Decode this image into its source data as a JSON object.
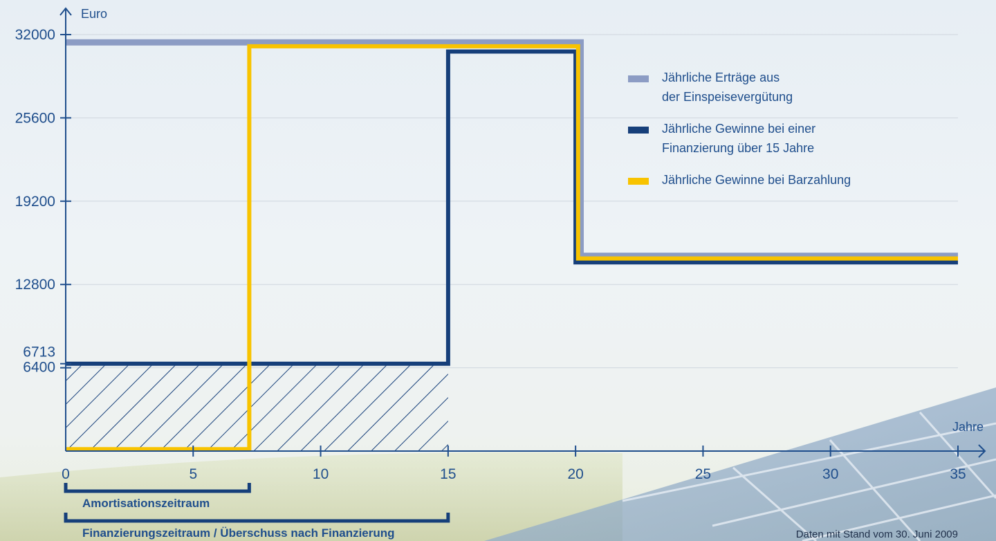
{
  "chart_data": {
    "type": "line",
    "step": true,
    "ylabel": "Euro",
    "xlabel": "Jahre",
    "x_ticks": [
      0,
      5,
      10,
      15,
      20,
      25,
      30,
      35
    ],
    "y_ticks": [
      6400,
      6713,
      12800,
      19200,
      25600,
      32000
    ],
    "xlim": [
      0,
      35
    ],
    "ylim": [
      0,
      32000
    ],
    "grid": true,
    "legend_position": "right",
    "series": [
      {
        "name": "Jährliche Erträge aus der Einspeisevergütung",
        "legend_lines": [
          "Jährliche Erträge aus",
          "der Einspeisevergütung"
        ],
        "color": "#8c9cc4",
        "points": [
          [
            0,
            31400
          ],
          [
            20.2,
            31400
          ],
          [
            20.2,
            15000
          ],
          [
            35,
            15000
          ]
        ]
      },
      {
        "name": "Jährliche Gewinne bei einer Finanzierung über 15 Jahre",
        "legend_lines": [
          "Jährliche Gewinne bei einer",
          "Finanzierung über 15 Jahre"
        ],
        "color": "#163f7a",
        "points": [
          [
            0,
            6713
          ],
          [
            15,
            6713
          ],
          [
            15,
            30700
          ],
          [
            20,
            30700
          ],
          [
            20,
            14500
          ],
          [
            35,
            14500
          ]
        ]
      },
      {
        "name": "Jährliche Gewinne bei Barzahlung",
        "legend_lines": [
          "Jährliche Gewinne bei Barzahlung"
        ],
        "color": "#f8c300",
        "points": [
          [
            0,
            150
          ],
          [
            7.2,
            150
          ],
          [
            7.2,
            31100
          ],
          [
            20.1,
            31100
          ],
          [
            20.1,
            14800
          ],
          [
            35,
            14800
          ]
        ]
      }
    ],
    "hatched_area": {
      "x": [
        0,
        15
      ],
      "y": [
        0,
        6713
      ],
      "color": "#163f7a"
    },
    "brackets": [
      {
        "label": "Amortisationszeitraum",
        "from": 0,
        "to": 7.2
      },
      {
        "label": "Finanzierungszeitraum / Überschuss nach Finanzierung",
        "from": 0,
        "to": 15
      }
    ],
    "note": "Daten mit Stand vom 30. Juni 2009"
  }
}
